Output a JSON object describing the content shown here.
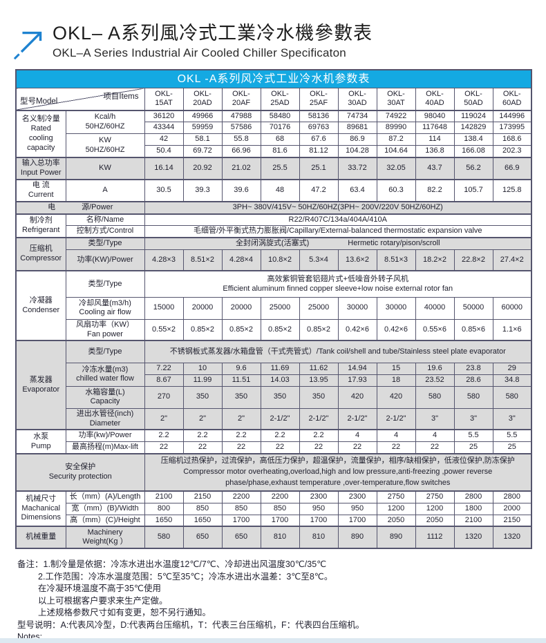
{
  "page": {
    "title_zh": "OKL– A系列風冷式工業冷水機參數表",
    "title_en": "OKL–A Series Industrial Air Cooled Chiller Specificaton"
  },
  "colors": {
    "accent_blue": "#14a9e2",
    "arrow_blue": "#1e82d0",
    "shade_gray": "#dbdbdb",
    "border": "#54546d",
    "footer_strip": "#dde9f1"
  },
  "table": {
    "caption": "OKL -A系列风冷式工业冷水机参数表",
    "corner": {
      "model": "型号Model",
      "items": "项目Items"
    },
    "models": [
      "OKL-15AT",
      "OKL-20AD",
      "OKL-20AF",
      "OKL-25AD",
      "OKL-25AF",
      "OKL-30AD",
      "OKL-30AT",
      "OKL-40AD",
      "OKL-50AD",
      "OKL-60AD"
    ],
    "rated": {
      "label": "名义制冷量\nRated\ncooling\ncapacity",
      "kcal_label": "Kcal/h\n50HZ/60HZ",
      "kw_label": "KW\n50HZ/60HZ",
      "kcal_50": [
        36120,
        49966,
        47988,
        58480,
        58136,
        74734,
        74922,
        98040,
        119024,
        144996
      ],
      "kcal_60": [
        43344,
        59959,
        57586,
        70176,
        69763,
        89681,
        89990,
        117648,
        142829,
        173995
      ],
      "kw_50": [
        42,
        58.1,
        55.8,
        68,
        67.6,
        86.9,
        87.2,
        114,
        138.4,
        168.6
      ],
      "kw_60": [
        50.4,
        69.72,
        66.96,
        81.6,
        81.12,
        104.28,
        104.64,
        136.8,
        166.08,
        202.3
      ]
    },
    "input_power": {
      "label": "输入总功率\nInput Power",
      "unit": "KW",
      "values": [
        16.14,
        20.92,
        21.02,
        25.5,
        25.1,
        33.72,
        32.05,
        43.7,
        56.2,
        66.9
      ]
    },
    "current": {
      "label": "电 流\nCurrent",
      "unit": "A",
      "values": [
        30.5,
        39.3,
        39.6,
        48,
        47.2,
        63.4,
        60.3,
        82.2,
        105.7,
        125.8
      ]
    },
    "power_source": {
      "label_left": "电",
      "label_right": "源/Power",
      "value": "3PH~ 380V/415V~ 50HZ/60HZ(3PH~ 200V/220V  50HZ/60HZ)"
    },
    "refrigerant": {
      "label": "制冷剂\nRefrigerant",
      "name_label": "名称/Name",
      "name_value": "R22/R407C/134a/404A/410A",
      "control_label": "控制方式/Control",
      "control_value": "毛细管/外平衡式热力膨胀阀/Capillary/External-balanced thermostatic expansion valve"
    },
    "compressor": {
      "label": "压缩机\nCompressor",
      "type_label": "类型/Type",
      "type_zh": "全封闭涡旋式(活塞式)",
      "type_en": "Hermetic rotary/pison/scroll",
      "power_label": "功率(KW)/Power",
      "power_values": [
        "4.28×3",
        "8.51×2",
        "4.28×4",
        "10.8×2",
        "5.3×4",
        "13.6×2",
        "8.51×3",
        "18.2×2",
        "22.8×2",
        "27.4×2"
      ]
    },
    "condenser": {
      "label": "冷凝器\nCondenser",
      "type_label": "类型/Type",
      "type_zh": "高效紫铜管套铝翅片式+低噪音外转子风机",
      "type_en": "Efficient aluminum finned copper sleeve+low noise external rotor fan",
      "airflow_label": "冷却风量(m3/h)\nCooling air flow",
      "airflow_values": [
        15000,
        20000,
        20000,
        25000,
        25000,
        30000,
        30000,
        40000,
        50000,
        60000
      ],
      "fan_label": "风扇功率（KW）\nFan power",
      "fan_values": [
        "0.55×2",
        "0.85×2",
        "0.85×2",
        "0.85×2",
        "0.85×2",
        "0.42×6",
        "0.42×6",
        "0.55×6",
        "0.85×6",
        "1.1×6"
      ]
    },
    "evaporator": {
      "label": "蒸发器\nEvaporator",
      "type_label": "类型/Type",
      "type_value": "不锈钢板式蒸发器/水箱盘管（干式壳管式）/Tank coil/shell and tube/Stainless steel plate evaporator",
      "water_label": "冷冻水量(m3)\nchilled water flow",
      "water_50": [
        7.22,
        10,
        9.6,
        11.69,
        11.62,
        14.94,
        15,
        19.6,
        23.8,
        29
      ],
      "water_60": [
        8.67,
        11.99,
        11.51,
        14.03,
        13.95,
        17.93,
        18,
        23.52,
        28.6,
        34.8
      ],
      "capacity_label": "水箱容量(L)\nCapacity",
      "capacity_values": [
        270,
        350,
        350,
        350,
        350,
        420,
        420,
        580,
        580,
        580
      ],
      "diameter_label": "进出水管径(inch)\nDiameter",
      "diameter_values": [
        "2\"",
        "2\"",
        "2\"",
        "2-1/2\"",
        "2-1/2\"",
        "2-1/2\"",
        "2-1/2\"",
        "3\"",
        "3\"",
        "3\""
      ]
    },
    "pump": {
      "label": "水泵\nPump",
      "power_label": "功率(kw)/Power",
      "power_values": [
        2.2,
        2.2,
        2.2,
        2.2,
        2.2,
        4,
        4,
        4,
        5.5,
        5.5
      ],
      "lift_label": "最高扬程(m)Max-lift",
      "lift_values": [
        22,
        22,
        22,
        22,
        22,
        22,
        22,
        22,
        25,
        25
      ]
    },
    "security": {
      "label": "安全保护\nSecurity protection",
      "value_zh": "压缩机过热保护，过流保护，高低压力保护，超温保护，流量保护，相序/缺相保护，低液位保护,防冻保护",
      "value_en": "Compressor motor overheating,overload,high and low pressure,anti-freezing ,power reverse phase/phase,exhaust temperature ,over-temperature,flow switches"
    },
    "dimensions": {
      "label": "机械尺寸\nMachanical\nDimensions",
      "length_label": "长（mm）(A)/Length",
      "length_values": [
        2100,
        2150,
        2200,
        2200,
        2300,
        2300,
        2750,
        2750,
        2800,
        2800
      ],
      "width_label": "宽（mm）(B)/Width",
      "width_values": [
        800,
        850,
        850,
        850,
        950,
        950,
        1200,
        1200,
        1800,
        2000
      ],
      "height_label": "高（mm）(C)/Height",
      "height_values": [
        1650,
        1650,
        1700,
        1700,
        1700,
        1700,
        2050,
        2050,
        2100,
        2150
      ]
    },
    "weight": {
      "label": "机械重量",
      "unit_label": "Machinery\nWeight(Kg ）",
      "values": [
        580,
        650,
        650,
        810,
        810,
        890,
        890,
        1112,
        1320,
        1320
      ]
    }
  },
  "notes": {
    "lines": [
      "备注：1.制冷量是依据：冷冻水进出水温度12℃/7℃、冷却进出风温度30℃/35℃",
      "2.工作范围：冷冻水温度范围：5℃至35℃；冷冻水进出水温差：3℃至8℃。",
      "在冷凝环境温度不高于35℃使用",
      "以上可根据客户要求来生产定做。",
      "上述规格参数尺寸如有变更，恕不另行通知。",
      "型号说明：A:代表风冷型，D:代表两台压缩机，T：代表三台压缩机，F：代表四台压缩机。",
      "Notes:"
    ]
  }
}
